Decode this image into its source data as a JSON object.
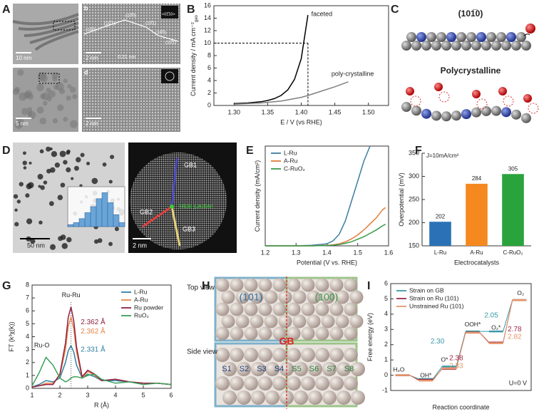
{
  "panel_labels": [
    "A",
    "B",
    "C",
    "D",
    "E",
    "F",
    "G",
    "H",
    "I"
  ],
  "panel_a": {
    "scale_bars": [
      "10 nm",
      "2 nm",
      "5 nm",
      "2 nm"
    ],
    "sublabels": [
      "b",
      "d"
    ],
    "facets": [
      "(10̅0)",
      "(10̅1)",
      "(10̅0)",
      "(10̅1)",
      "(10̅0)",
      "(10̅1)"
    ],
    "spacing": "0.21 nm",
    "zone": "<01̅10>"
  },
  "panel_c": {
    "top": "(101̅0)",
    "bottom": "Polycrystalline"
  },
  "panel_d": {
    "scale_bars": [
      "50 nm",
      "2 nm"
    ],
    "boundaries": [
      "GB1",
      "GB2",
      "GB3"
    ],
    "junction": "Triple junction"
  },
  "panel_h": {
    "top_view": "Top view",
    "side_view": "Side view",
    "facets": [
      "(101)",
      "(100)"
    ],
    "gb": "GB",
    "sites": [
      "S1",
      "S2",
      "S3",
      "S4",
      "S5",
      "S6",
      "S7",
      "S8"
    ]
  },
  "chart_data": [
    {
      "type": "line",
      "x_label": "E / V (vs RHE)",
      "y_label": "Current density / mA cm⁻²",
      "y_label_sub": "geo",
      "x": [
        1.3,
        1.32,
        1.34,
        1.35,
        1.36,
        1.37,
        1.38,
        1.39,
        1.4,
        1.41,
        1.43,
        1.45,
        1.47
      ],
      "series": [
        {
          "name": "faceted",
          "color": "#000000",
          "values": [
            0.3,
            0.4,
            0.6,
            0.8,
            1.1,
            1.6,
            2.5,
            4.2,
            7.5,
            14.5,
            null,
            null,
            null
          ]
        },
        {
          "name": "poly-crystalline",
          "color": "#808080",
          "values": [
            0.2,
            0.3,
            0.4,
            0.5,
            0.6,
            0.7,
            0.9,
            1.1,
            1.3,
            1.6,
            2.3,
            3.0,
            3.8
          ]
        }
      ],
      "xlim": [
        1.27,
        1.53
      ],
      "xticks": [
        {
          "value": 1.3,
          "label": "1.30"
        },
        1.35,
        {
          "value": 1.4,
          "label": "1.40"
        },
        1.45,
        {
          "value": 1.5,
          "label": "1.50"
        }
      ],
      "ylim": [
        0,
        16
      ],
      "yticks": [
        0,
        2,
        4,
        6,
        8,
        10,
        12,
        14,
        16
      ],
      "ref_x": 1.41,
      "ref_y": 10
    },
    {
      "type": "line",
      "x_label": "Potential (V vs. RHE)",
      "y_label": "Current density (mA/cm²)",
      "legend": "top-left",
      "x": [
        1.2,
        1.3,
        1.35,
        1.4,
        1.42,
        1.44,
        1.46,
        1.48,
        1.5,
        1.52,
        1.54,
        1.56,
        1.58,
        1.59
      ],
      "series": [
        {
          "name": "L-Ru",
          "color": "#3b7ea1",
          "values": [
            0,
            0,
            0.3,
            1.2,
            3,
            7,
            15,
            27,
            39,
            51,
            60,
            null,
            null,
            null
          ]
        },
        {
          "name": "A-Ru",
          "color": "#e07b39",
          "values": [
            0,
            0,
            0,
            0.3,
            0.6,
            1.2,
            2.4,
            4.2,
            6.6,
            9.6,
            13.2,
            16.8,
            21.6,
            23
          ]
        },
        {
          "name": "C-RuO₂",
          "color": "#3a9a4a",
          "values": [
            0,
            0,
            0,
            0.2,
            0.4,
            0.8,
            1.5,
            2.5,
            4,
            5.5,
            7.5,
            9.5,
            12,
            13
          ]
        }
      ],
      "xlim": [
        1.2,
        1.6
      ],
      "xticks": [
        1.2,
        1.3,
        1.4,
        1.5,
        1.6
      ],
      "ylim": [
        0,
        60
      ]
    },
    {
      "type": "bar",
      "x_label": "Electrocatalysts",
      "y_label": "Overpotential (mV)",
      "annotation": "J=10mA/cm²",
      "categories": [
        "L-Ru",
        "A-Ru",
        "C-RuO₂"
      ],
      "values": [
        202,
        284,
        305
      ],
      "colors": [
        "#2a72b5",
        "#f5891f",
        "#2aa33c"
      ],
      "ylim": [
        150,
        350
      ],
      "yticks": [
        150,
        200,
        250,
        300,
        350
      ]
    },
    {
      "type": "line",
      "x_label": "R (Å)",
      "y_label": "FT (k³χ(k))",
      "legend": "top-right",
      "annotations": [
        "Ru-Ru",
        "Ru-O"
      ],
      "x": [
        1,
        1.25,
        1.5,
        1.75,
        2,
        2.2,
        2.3,
        2.4,
        2.5,
        2.6,
        2.8,
        3,
        3.25,
        3.5,
        4,
        4.5,
        5,
        5.5,
        6
      ],
      "series": [
        {
          "name": "L-Ru",
          "color": "#2f7fa3",
          "peak_label": "2.331 Å",
          "values": [
            0.1,
            0.3,
            0.6,
            0.5,
            0.8,
            2.0,
            2.9,
            3.3,
            2.8,
            1.8,
            0.8,
            1.1,
            0.9,
            0.6,
            0.6,
            0.5,
            0.4,
            0.4,
            0.3
          ]
        },
        {
          "name": "A-Ru",
          "color": "#e8874a",
          "peak_label": "2.362 Å",
          "values": [
            0.1,
            0.2,
            0.4,
            0.4,
            1.0,
            3.0,
            4.8,
            5.5,
            4.6,
            2.8,
            0.8,
            1.3,
            1.0,
            0.6,
            0.7,
            0.5,
            0.4,
            0.4,
            0.3
          ]
        },
        {
          "name": "Ru powder",
          "color": "#8e1f3f",
          "peak_label": "2.362 Å",
          "values": [
            0.1,
            0.2,
            0.3,
            0.3,
            1.1,
            3.5,
            5.5,
            6.3,
            5.2,
            3.2,
            0.9,
            1.4,
            1.1,
            0.6,
            0.7,
            0.5,
            0.4,
            0.4,
            0.3
          ]
        },
        {
          "name": "RuO₂",
          "color": "#3aa05a",
          "values": [
            0.2,
            1.2,
            2.4,
            1.8,
            0.8,
            0.5,
            0.6,
            0.8,
            0.9,
            0.9,
            0.8,
            1.0,
            1.1,
            0.7,
            0.4,
            0.5,
            0.3,
            0.4,
            0.3
          ]
        }
      ],
      "xlim": [
        1,
        6
      ],
      "xticks": [
        1,
        2,
        3,
        4,
        5,
        6
      ],
      "ylim": [
        0,
        8
      ],
      "yticks": [
        0,
        1,
        2,
        3,
        4,
        5,
        6,
        7,
        8
      ],
      "ref_x": 2.4
    },
    {
      "type": "step",
      "x_label": "Reaction coordinate",
      "y_label": "Free energy (eV)",
      "legend": "top-left",
      "annotation": "U=0 V",
      "categories": [
        "H₂O",
        "OH*",
        "O*",
        "OOH*",
        "O₂*",
        "O₂"
      ],
      "series": [
        {
          "name": "Strain on GB",
          "color": "#3a9aa8",
          "step_labels": [
            "2.30",
            "2.05"
          ],
          "values": [
            0,
            -0.25,
            0.57,
            2.87,
            2.87,
            4.92
          ]
        },
        {
          "name": "Strain on Ru (101)",
          "color": "#9b2a4a",
          "step_labels": [
            "2.38",
            "2.78"
          ],
          "values": [
            0,
            -0.3,
            0.42,
            2.8,
            2.14,
            4.92
          ]
        },
        {
          "name": "Unstrained Ru (101)",
          "color": "#e8956a",
          "step_labels": [
            "2.33",
            "2.82"
          ],
          "values": [
            0,
            -0.35,
            0.45,
            2.78,
            2.1,
            4.92
          ]
        }
      ],
      "ylim": [
        -1,
        6
      ],
      "yticks": [
        -1,
        0,
        1,
        2,
        3,
        4,
        5,
        6
      ]
    },
    {
      "type": "histogram",
      "bins": [
        2,
        4,
        6,
        8,
        10,
        12,
        14,
        16,
        18,
        20,
        22
      ],
      "values": [
        1,
        2,
        4,
        7,
        10,
        14,
        17,
        12,
        6,
        2
      ],
      "color": "#6aa5d8",
      "xlim": [
        2,
        22
      ],
      "ylim": [
        0,
        20
      ]
    }
  ]
}
